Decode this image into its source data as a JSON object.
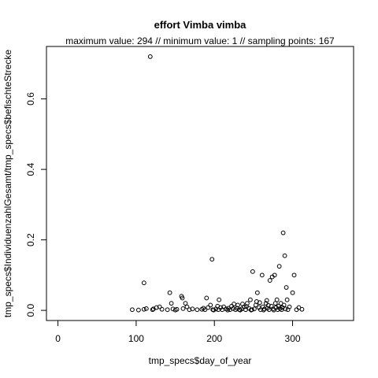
{
  "chart_data": {
    "type": "scatter",
    "title": "effort Vimba vimba",
    "subtitle": "maximum value: 294  //  minimum value: 1  // sampling points: 167",
    "xlabel": "tmp_specs$day_of_year",
    "ylabel": "tmp_specs$IndividuenzahlGesamt/tmp_specs$befischteStrecke",
    "xlim": [
      -14.7,
      378
    ],
    "ylim": [
      -0.0288,
      0.7488
    ],
    "x_ticks": [
      0,
      100,
      200,
      300
    ],
    "y_ticks": [
      0.0,
      0.2,
      0.4,
      0.6
    ],
    "x_tick_labels": [
      "0",
      "100",
      "200",
      "300"
    ],
    "y_tick_labels": [
      "0.0",
      "0.2",
      "0.4",
      "0.6"
    ],
    "grid": false,
    "points": [
      {
        "x": 95,
        "y": 0.002
      },
      {
        "x": 103,
        "y": 0.001
      },
      {
        "x": 110,
        "y": 0.003
      },
      {
        "x": 113,
        "y": 0.005
      },
      {
        "x": 118,
        "y": 0.72
      },
      {
        "x": 121,
        "y": 0.002
      },
      {
        "x": 122,
        "y": 0.004
      },
      {
        "x": 126,
        "y": 0.008
      },
      {
        "x": 110,
        "y": 0.078
      },
      {
        "x": 130,
        "y": 0.01
      },
      {
        "x": 133,
        "y": 0.003
      },
      {
        "x": 140,
        "y": 0.002
      },
      {
        "x": 143,
        "y": 0.05
      },
      {
        "x": 145,
        "y": 0.02
      },
      {
        "x": 150,
        "y": 0.001
      },
      {
        "x": 152,
        "y": 0.003
      },
      {
        "x": 158,
        "y": 0.04
      },
      {
        "x": 159,
        "y": 0.035
      },
      {
        "x": 163,
        "y": 0.02
      },
      {
        "x": 165,
        "y": 0.01
      },
      {
        "x": 168,
        "y": 0.002
      },
      {
        "x": 178,
        "y": 0.002
      },
      {
        "x": 184,
        "y": 0.003
      },
      {
        "x": 188,
        "y": 0.002
      },
      {
        "x": 190,
        "y": 0.035
      },
      {
        "x": 192,
        "y": 0.008
      },
      {
        "x": 195,
        "y": 0.015
      },
      {
        "x": 197,
        "y": 0.145
      },
      {
        "x": 198,
        "y": 0.002
      },
      {
        "x": 202,
        "y": 0.004
      },
      {
        "x": 205,
        "y": 0.002
      },
      {
        "x": 206,
        "y": 0.03
      },
      {
        "x": 208,
        "y": 0.008
      },
      {
        "x": 210,
        "y": 0.002
      },
      {
        "x": 212,
        "y": 0.01
      },
      {
        "x": 215,
        "y": 0.004
      },
      {
        "x": 218,
        "y": 0.006
      },
      {
        "x": 220,
        "y": 0.002
      },
      {
        "x": 222,
        "y": 0.012
      },
      {
        "x": 225,
        "y": 0.018
      },
      {
        "x": 227,
        "y": 0.002
      },
      {
        "x": 229,
        "y": 0.006
      },
      {
        "x": 230,
        "y": 0.015
      },
      {
        "x": 232,
        "y": 0.002
      },
      {
        "x": 235,
        "y": 0.004
      },
      {
        "x": 238,
        "y": 0.01
      },
      {
        "x": 240,
        "y": 0.002
      },
      {
        "x": 242,
        "y": 0.02
      },
      {
        "x": 244,
        "y": 0.006
      },
      {
        "x": 246,
        "y": 0.03
      },
      {
        "x": 248,
        "y": 0.002
      },
      {
        "x": 249,
        "y": 0.11
      },
      {
        "x": 251,
        "y": 0.004
      },
      {
        "x": 253,
        "y": 0.015
      },
      {
        "x": 255,
        "y": 0.05
      },
      {
        "x": 257,
        "y": 0.008
      },
      {
        "x": 259,
        "y": 0.002
      },
      {
        "x": 261,
        "y": 0.1
      },
      {
        "x": 262,
        "y": 0.01
      },
      {
        "x": 264,
        "y": 0.004
      },
      {
        "x": 266,
        "y": 0.02
      },
      {
        "x": 268,
        "y": 0.006
      },
      {
        "x": 270,
        "y": 0.002
      },
      {
        "x": 271,
        "y": 0.085
      },
      {
        "x": 273,
        "y": 0.012
      },
      {
        "x": 274,
        "y": 0.095
      },
      {
        "x": 275,
        "y": 0.004
      },
      {
        "x": 277,
        "y": 0.1
      },
      {
        "x": 278,
        "y": 0.02
      },
      {
        "x": 279,
        "y": 0.008
      },
      {
        "x": 280,
        "y": 0.03
      },
      {
        "x": 281,
        "y": 0.002
      },
      {
        "x": 282,
        "y": 0.012
      },
      {
        "x": 283,
        "y": 0.125
      },
      {
        "x": 284,
        "y": 0.005
      },
      {
        "x": 285,
        "y": 0.02
      },
      {
        "x": 286,
        "y": 0.002
      },
      {
        "x": 287,
        "y": 0.008
      },
      {
        "x": 288,
        "y": 0.22
      },
      {
        "x": 289,
        "y": 0.015
      },
      {
        "x": 290,
        "y": 0.155
      },
      {
        "x": 291,
        "y": 0.004
      },
      {
        "x": 292,
        "y": 0.065
      },
      {
        "x": 293,
        "y": 0.03
      },
      {
        "x": 294,
        "y": 0.002
      },
      {
        "x": 296,
        "y": 0.01
      },
      {
        "x": 300,
        "y": 0.05
      },
      {
        "x": 302,
        "y": 0.1
      },
      {
        "x": 305,
        "y": 0.002
      },
      {
        "x": 308,
        "y": 0.008
      },
      {
        "x": 312,
        "y": 0.003
      },
      {
        "x": 199,
        "y": 0.001
      },
      {
        "x": 217,
        "y": 0.001
      },
      {
        "x": 233,
        "y": 0.001
      },
      {
        "x": 247,
        "y": 0.001
      },
      {
        "x": 263,
        "y": 0.001
      },
      {
        "x": 276,
        "y": 0.001
      },
      {
        "x": 236,
        "y": 0.018
      },
      {
        "x": 254,
        "y": 0.025
      },
      {
        "x": 269,
        "y": 0.014
      },
      {
        "x": 204,
        "y": 0.012
      },
      {
        "x": 224,
        "y": 0.005
      },
      {
        "x": 241,
        "y": 0.011
      },
      {
        "x": 258,
        "y": 0.022
      },
      {
        "x": 267,
        "y": 0.028
      },
      {
        "x": 186,
        "y": 0.006
      },
      {
        "x": 172,
        "y": 0.004
      },
      {
        "x": 160,
        "y": 0.005
      },
      {
        "x": 147,
        "y": 0.004
      }
    ]
  }
}
